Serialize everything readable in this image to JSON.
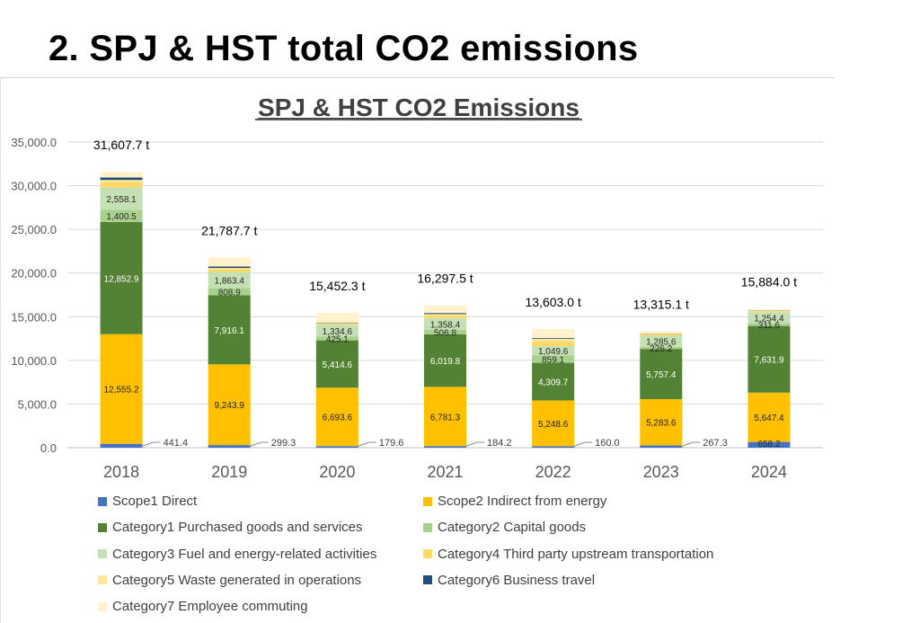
{
  "slide": {
    "title": "2. SPJ & HST total CO2 emissions"
  },
  "colors": {
    "scope1": "#4472C4",
    "scope2": "#FFC000",
    "cat1": "#548235",
    "cat2": "#A9D18E",
    "cat3": "#C5E0B4",
    "cat4": "#FFD966",
    "cat5": "#FFE699",
    "cat6": "#1F4E79",
    "cat7": "#FFF2CC"
  },
  "chart_data": {
    "type": "bar",
    "stacked": true,
    "title": "SPJ & HST CO2 Emissions",
    "xlabel": "",
    "ylabel": "",
    "ylim": [
      0,
      35000
    ],
    "yticks": [
      "0.0",
      "5,000.0",
      "10,000.0",
      "15,000.0",
      "20,000.0",
      "25,000.0",
      "30,000.0",
      "35,000.0"
    ],
    "grid": true,
    "legend_position": "bottom",
    "categories": [
      "2018",
      "2019",
      "2020",
      "2021",
      "2022",
      "2023",
      "2024"
    ],
    "totals": [
      "31,607.7 t",
      "21,787.7 t",
      "15,452.3 t",
      "16,297.5 t",
      "13,603.0 t",
      "13,315.1 t",
      "15,884.0 t"
    ],
    "total_values": [
      31607.7,
      21787.7,
      15452.3,
      16297.5,
      13603.0,
      13315.1,
      15884.0
    ],
    "series": [
      {
        "name": "Scope1 Direct",
        "key": "scope1",
        "values": [
          441.4,
          299.3,
          179.6,
          184.2,
          160.0,
          267.3,
          658.2
        ],
        "labels": [
          "441.4",
          "299.3",
          "179.6",
          "184.2",
          "160.0",
          "267.3",
          "658.2"
        ],
        "label_style": "callout"
      },
      {
        "name": "Scope2 Indirect from energy",
        "key": "scope2",
        "values": [
          12555.2,
          9243.9,
          6693.6,
          6781.3,
          5248.6,
          5283.6,
          5647.4
        ],
        "labels": [
          "12,555.2",
          "9,243.9",
          "6,693.6",
          "6,781.3",
          "5,248.6",
          "5,283.6",
          "5,647.4"
        ],
        "label_style": "inside"
      },
      {
        "name": "Category1 Purchased goods and services",
        "key": "cat1",
        "values": [
          12852.9,
          7916.1,
          5414.6,
          6019.8,
          4309.7,
          5757.4,
          7631.9
        ],
        "labels": [
          "12,852.9",
          "7,916.1",
          "5,414.6",
          "6,019.8",
          "4,309.7",
          "5,757.4",
          "7,631.9"
        ],
        "label_style": "inside"
      },
      {
        "name": "Category2 Capital goods",
        "key": "cat2",
        "values": [
          1400.5,
          808.9,
          425.1,
          506.8,
          859.1,
          226.2,
          311.6
        ],
        "labels": [
          "1,400.5",
          "808.9",
          "425.1",
          "506.8",
          "859.1",
          "226.2",
          "311.6"
        ],
        "label_style": "inside"
      },
      {
        "name": "Category3 Fuel and energy-related activities",
        "key": "cat3",
        "values": [
          2558.1,
          1863.4,
          1334.6,
          1358.4,
          1049.6,
          1285.6,
          1254.4
        ],
        "labels": [
          "2,558.1",
          "1,863.4",
          "1,334.6",
          "1,358.4",
          "1,049.6",
          "1,285.6",
          "1,254.4"
        ],
        "label_style": "inside"
      },
      {
        "name": "Category4 Third party upstream transportation",
        "key": "cat4",
        "values": [
          600,
          300,
          120,
          300,
          550,
          150,
          120
        ],
        "labels": [],
        "label_style": "none"
      },
      {
        "name": "Category5 Waste generated in operations",
        "key": "cat5",
        "values": [
          250,
          150,
          100,
          150,
          300,
          80,
          60
        ],
        "labels": [],
        "label_style": "none"
      },
      {
        "name": "Category6 Business travel",
        "key": "cat6",
        "values": [
          280,
          160,
          60,
          120,
          90,
          30,
          40
        ],
        "labels": [],
        "label_style": "none"
      },
      {
        "name": "Category7 Employee commuting",
        "key": "cat7",
        "values": [
          670,
          1046,
          1124,
          877,
          1036,
          235,
          160
        ],
        "labels": [],
        "label_style": "none"
      }
    ]
  }
}
